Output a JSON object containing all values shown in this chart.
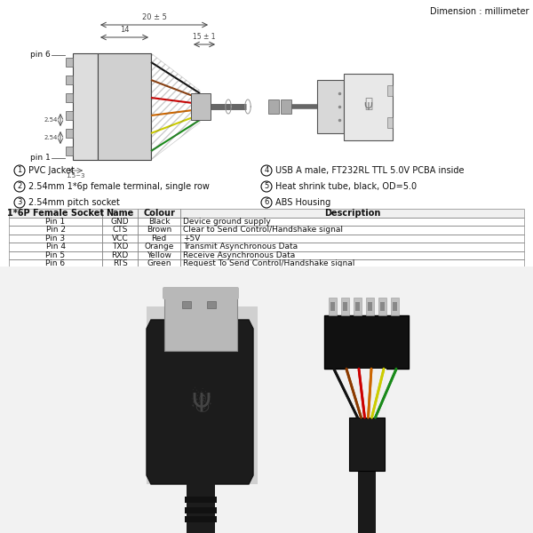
{
  "bg_color": "#ffffff",
  "dimension_label": "Dimension : millimeter",
  "numbered_items": [
    {
      "num": "1",
      "text": "PVC Jacket"
    },
    {
      "num": "2",
      "text": "2.54mm 1*6p female terminal, single row"
    },
    {
      "num": "3",
      "text": "2.54mm pitch socket"
    },
    {
      "num": "4",
      "text": "USB A male, FT232RL TTL 5.0V PCBA inside"
    },
    {
      "num": "5",
      "text": "Heat shrink tube, black, OD=5.0"
    },
    {
      "num": "6",
      "text": "ABS Housing"
    }
  ],
  "table_headers": [
    "1*6P Female Socket",
    "Name",
    "Colour",
    "Description"
  ],
  "table_rows": [
    [
      "Pin 1",
      "GND",
      "Black",
      "Device ground supply"
    ],
    [
      "Pin 2",
      "CTS",
      "Brown",
      "Clear to Send Control/Handshake signal"
    ],
    [
      "Pin 3",
      "VCC",
      "Red",
      "+5V"
    ],
    [
      "Pin 4",
      "TXD",
      "Orange",
      "Transmit Asynchronous Data"
    ],
    [
      "Pin 5",
      "RXD",
      "Yellow",
      "Receive Asynchronous Data"
    ],
    [
      "Pin 6",
      "RTS",
      "Green",
      "Request To Send Control/Handshake signal"
    ]
  ],
  "wire_colors_diag": [
    "#1a8a1a",
    "#cccc00",
    "#cc6600",
    "#cc0000",
    "#8B4010",
    "#111111"
  ],
  "wire_colors_photo": [
    "#111111",
    "#8B3A00",
    "#cc0000",
    "#cc6600",
    "#cccc00",
    "#1a8a1a"
  ],
  "text_color": "#111111",
  "dim_color": "#444444"
}
